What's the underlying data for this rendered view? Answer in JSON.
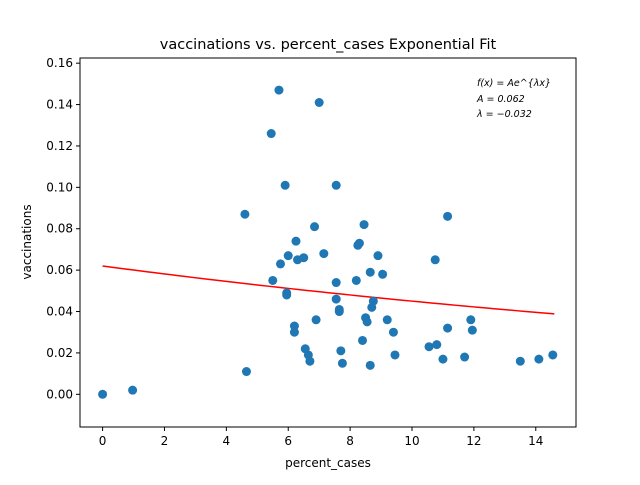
{
  "chart_data": {
    "type": "scatter",
    "title": "vaccinations vs. percent_cases Exponential Fit",
    "xlabel": "percent_cases",
    "ylabel": "vaccinations",
    "xlim": [
      -0.73,
      15.3
    ],
    "ylim": [
      -0.0158,
      0.1625
    ],
    "x_ticks": [
      0,
      2,
      4,
      6,
      8,
      10,
      12,
      14
    ],
    "x_tick_labels": [
      "0",
      "2",
      "4",
      "6",
      "8",
      "10",
      "12",
      "14"
    ],
    "y_ticks": [
      0.0,
      0.02,
      0.04,
      0.06,
      0.08,
      0.1,
      0.12,
      0.14,
      0.16
    ],
    "y_tick_labels": [
      "0.00",
      "0.02",
      "0.04",
      "0.06",
      "0.08",
      "0.10",
      "0.12",
      "0.14",
      "0.16"
    ],
    "grid": false,
    "scatter_color": "#1f77b4",
    "fit_color": "#ff0000",
    "series": [
      {
        "type": "scatter",
        "points": [
          [
            0.0,
            0.0
          ],
          [
            0.97,
            0.002
          ],
          [
            4.6,
            0.087
          ],
          [
            4.65,
            0.011
          ],
          [
            5.45,
            0.126
          ],
          [
            5.5,
            0.055
          ],
          [
            5.7,
            0.147
          ],
          [
            5.75,
            0.063
          ],
          [
            5.9,
            0.101
          ],
          [
            5.95,
            0.049
          ],
          [
            5.95,
            0.048
          ],
          [
            6.0,
            0.067
          ],
          [
            6.2,
            0.033
          ],
          [
            6.2,
            0.03
          ],
          [
            6.25,
            0.074
          ],
          [
            6.3,
            0.065
          ],
          [
            6.5,
            0.066
          ],
          [
            6.55,
            0.022
          ],
          [
            6.65,
            0.019
          ],
          [
            6.7,
            0.016
          ],
          [
            6.85,
            0.081
          ],
          [
            6.9,
            0.036
          ],
          [
            7.0,
            0.141
          ],
          [
            7.15,
            0.068
          ],
          [
            7.55,
            0.101
          ],
          [
            7.55,
            0.054
          ],
          [
            7.55,
            0.046
          ],
          [
            7.65,
            0.041
          ],
          [
            7.65,
            0.04
          ],
          [
            7.7,
            0.021
          ],
          [
            7.75,
            0.015
          ],
          [
            8.2,
            0.055
          ],
          [
            8.25,
            0.072
          ],
          [
            8.3,
            0.073
          ],
          [
            8.4,
            0.026
          ],
          [
            8.45,
            0.082
          ],
          [
            8.5,
            0.037
          ],
          [
            8.55,
            0.035
          ],
          [
            8.65,
            0.059
          ],
          [
            8.65,
            0.014
          ],
          [
            8.7,
            0.042
          ],
          [
            8.75,
            0.045
          ],
          [
            8.9,
            0.067
          ],
          [
            9.05,
            0.058
          ],
          [
            9.2,
            0.036
          ],
          [
            9.4,
            0.03
          ],
          [
            9.45,
            0.019
          ],
          [
            10.55,
            0.023
          ],
          [
            10.75,
            0.065
          ],
          [
            10.8,
            0.024
          ],
          [
            11.0,
            0.017
          ],
          [
            11.15,
            0.086
          ],
          [
            11.15,
            0.032
          ],
          [
            11.7,
            0.018
          ],
          [
            11.9,
            0.036
          ],
          [
            11.95,
            0.031
          ],
          [
            13.5,
            0.016
          ],
          [
            14.1,
            0.017
          ],
          [
            14.55,
            0.019
          ]
        ]
      },
      {
        "type": "line",
        "x_range": [
          0,
          14.6
        ],
        "samples": 60,
        "A": 0.062,
        "lambda": -0.032
      }
    ],
    "annotation": {
      "lines": [
        "f(x) = Ae^{λx}",
        "A = 0.062",
        "λ = −0.032"
      ],
      "position": "top-right"
    }
  }
}
